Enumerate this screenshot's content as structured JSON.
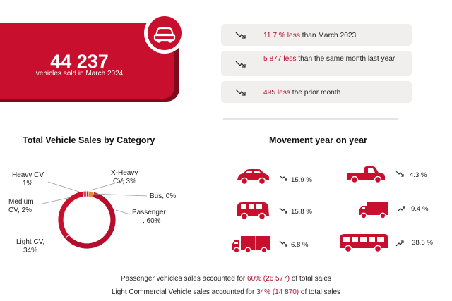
{
  "colors": {
    "accent": "#c8102e",
    "dark_accent": "#7d0a1d",
    "highlight_text": "#a8102b",
    "stat_bg": "#f1eeee"
  },
  "hero": {
    "value": "44 237",
    "caption": "vehicles sold in March 2024",
    "icon": "car-icon"
  },
  "stats": [
    {
      "icon": "trend-down-icon",
      "highlight": "11.7 % less",
      "rest": " than March 2023"
    },
    {
      "icon": "trend-down-icon",
      "highlight": "5 877 less",
      "rest": " than the same month last year"
    },
    {
      "icon": "trend-down-icon",
      "highlight": "495 less",
      "rest": " the prior month"
    }
  ],
  "chart_data": [
    {
      "type": "pie",
      "title": "Total Vehicle Sales by Category",
      "slices": [
        {
          "label": "Passenger",
          "value": 60,
          "value_label": "60%"
        },
        {
          "label": "Light CV",
          "value": 34,
          "value_label": "34%"
        },
        {
          "label": "Medium CV",
          "value": 2,
          "value_label": "2%"
        },
        {
          "label": "Heavy CV",
          "value": 1,
          "value_label": "1%"
        },
        {
          "label": "X-Heavy CV",
          "value": 3,
          "value_label": "3%"
        },
        {
          "label": "Bus",
          "value": 0,
          "value_label": "0%"
        }
      ]
    }
  ],
  "donut_labels": {
    "heavy": [
      "Heavy CV,",
      "1%"
    ],
    "medium": [
      "Medium",
      "CV, 2%"
    ],
    "light": [
      "Light CV,",
      "34%"
    ],
    "xheavy": [
      "X-Heavy",
      "CV, 3%"
    ],
    "bus": "Bus, 0%",
    "passenger": [
      "Passenger",
      ", 60%"
    ]
  },
  "movement": {
    "title": "Movement year on year",
    "items": [
      {
        "vehicle": "car-icon",
        "trend": "trend-down-icon",
        "value": "15.9 %"
      },
      {
        "vehicle": "pickup-icon",
        "trend": "trend-down-icon",
        "value": "4.3 %"
      },
      {
        "vehicle": "van-icon",
        "trend": "trend-down-icon",
        "value": "15.8 %"
      },
      {
        "vehicle": "truck-icon",
        "trend": "trend-up-icon",
        "value": "9.4 %"
      },
      {
        "vehicle": "lorry-icon",
        "trend": "trend-down-icon",
        "value": "6.8 %"
      },
      {
        "vehicle": "bus-icon",
        "trend": "trend-up-icon",
        "value": "38.6 %"
      }
    ]
  },
  "footer": {
    "line1": {
      "pre": "Passenger vehicles sales accounted for ",
      "highlight": "60% (26 577)",
      "post": " of total sales"
    },
    "line2": {
      "pre": "Light Commercial Vehicle sales accounted for ",
      "highlight": "34% (14 870)",
      "post": " of total sales"
    }
  }
}
